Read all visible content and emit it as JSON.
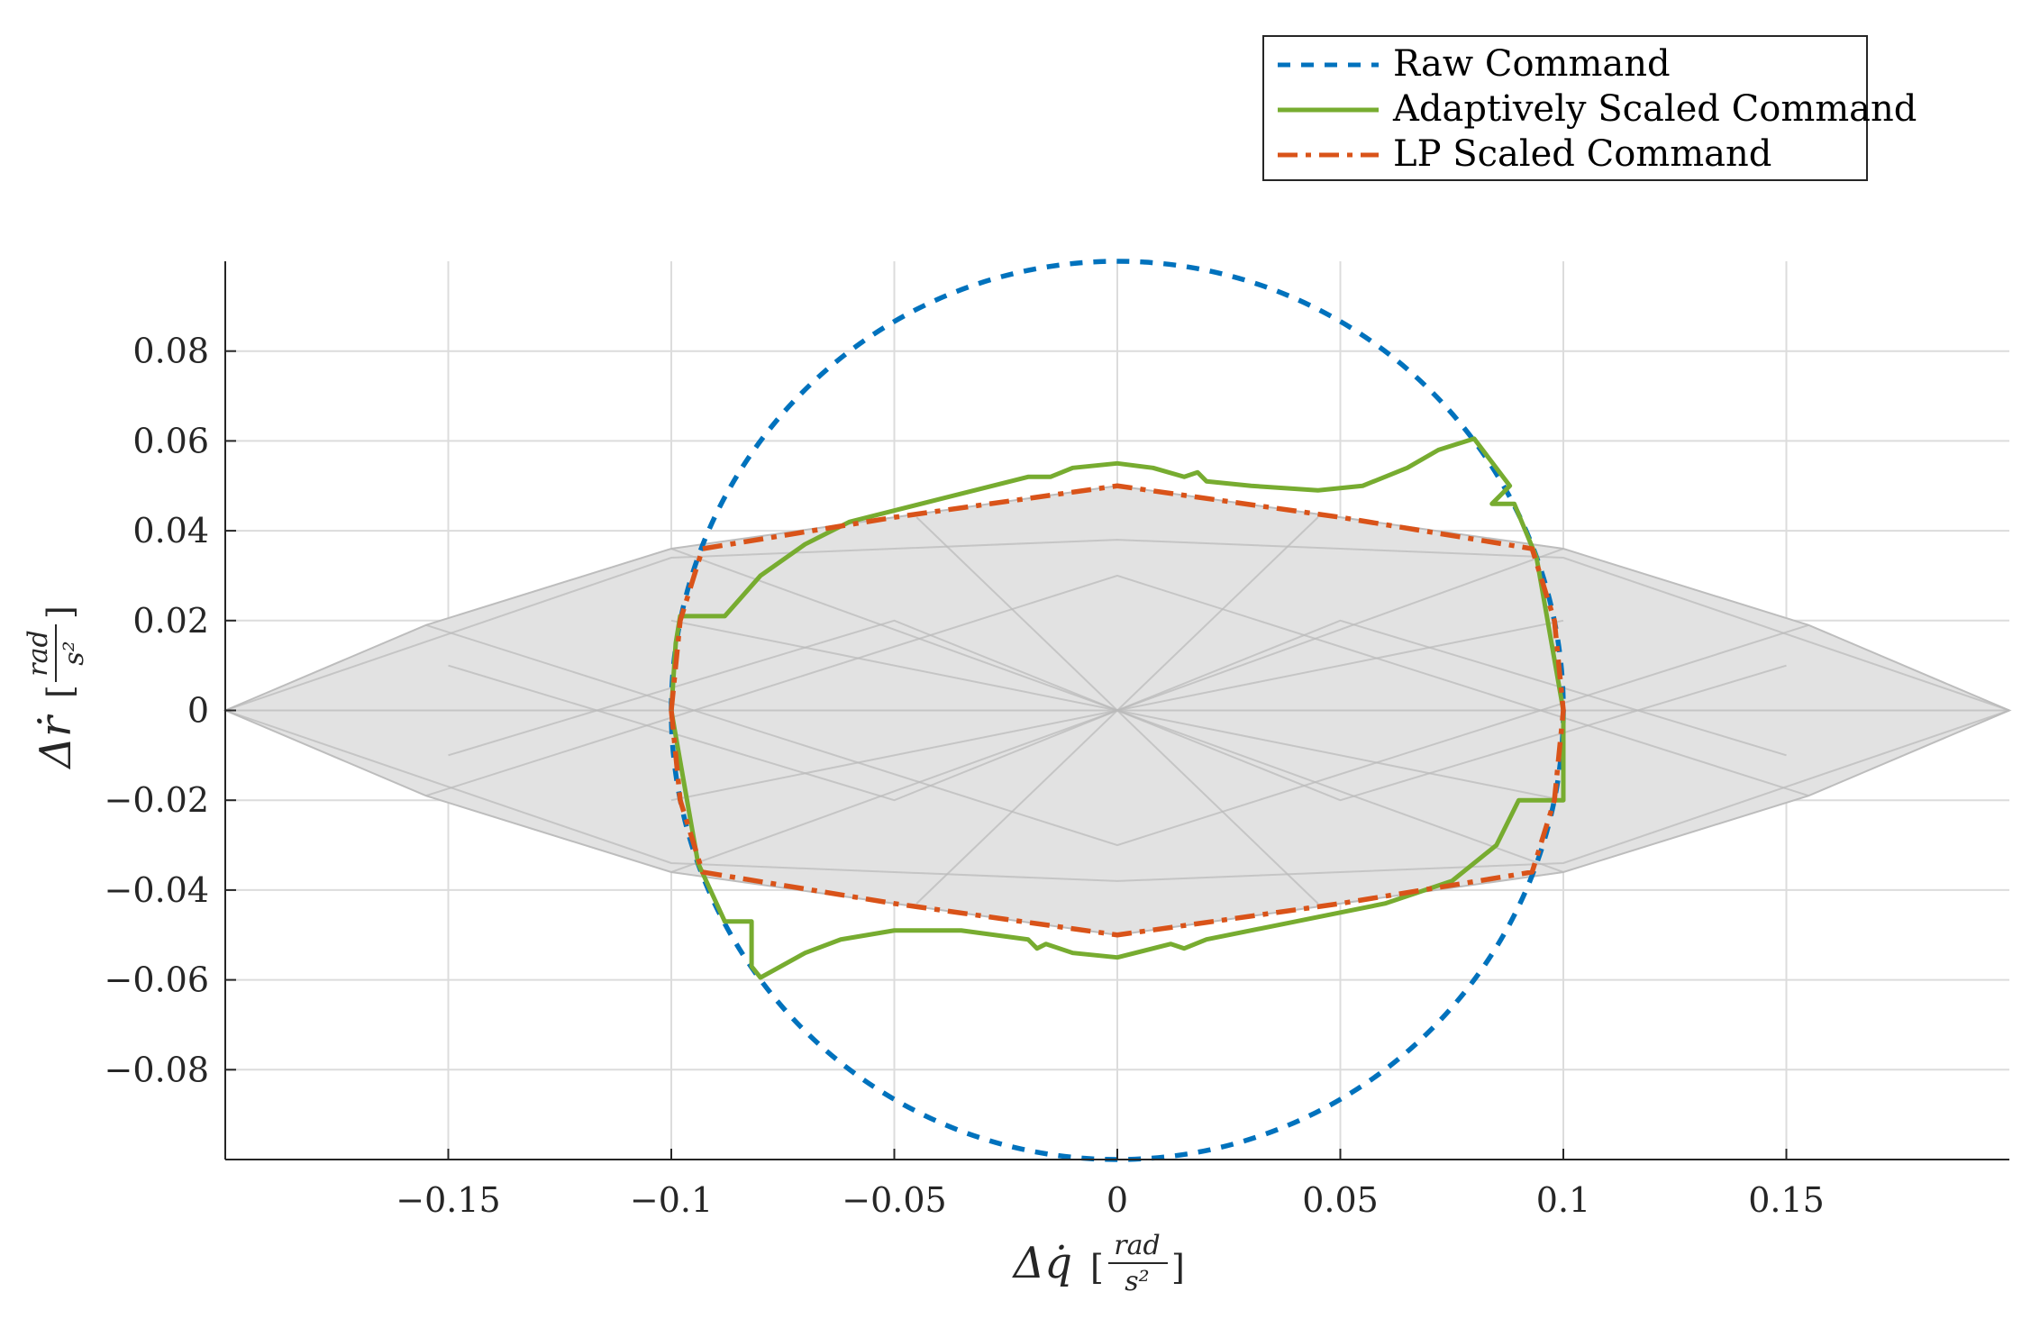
{
  "chart_data": {
    "type": "line",
    "title": "",
    "xlabel": "Δq̇",
    "ylabel": "Δṙ",
    "units": {
      "numerator": "rad",
      "denominator": "s²"
    },
    "xlim": [
      -0.2,
      0.2
    ],
    "ylim": [
      -0.1,
      0.1
    ],
    "x_ticks": [
      -0.15,
      -0.1,
      -0.05,
      0,
      0.05,
      0.1,
      0.15
    ],
    "x_tick_labels": [
      "−0.15",
      "−0.1",
      "−0.05",
      "0",
      "0.05",
      "0.1",
      "0.15"
    ],
    "y_ticks": [
      0.08,
      0.06,
      0.04,
      0.02,
      0,
      -0.02,
      -0.04,
      -0.06,
      -0.08
    ],
    "y_tick_labels": [
      "0.08",
      "0.06",
      "0.04",
      "0.02",
      "0",
      "−0.02",
      "−0.04",
      "−0.06",
      "−0.08"
    ],
    "grid": true,
    "legend_position": "top-right",
    "attainable_region": [
      [
        -0.2,
        0
      ],
      [
        -0.155,
        0.019
      ],
      [
        -0.1,
        0.036
      ],
      [
        0,
        0.05
      ],
      [
        0.1,
        0.036
      ],
      [
        0.155,
        0.019
      ],
      [
        0.2,
        0
      ],
      [
        0.155,
        -0.019
      ],
      [
        0.1,
        -0.036
      ],
      [
        0,
        -0.05
      ],
      [
        -0.1,
        -0.036
      ],
      [
        -0.155,
        -0.019
      ]
    ],
    "region_internal_lines": [
      [
        [
          -0.2,
          0
        ],
        [
          -0.1,
          0.034
        ],
        [
          0,
          0.038
        ],
        [
          0.1,
          0.034
        ],
        [
          0.2,
          0
        ]
      ],
      [
        [
          -0.2,
          0
        ],
        [
          -0.1,
          -0.034
        ],
        [
          0,
          -0.038
        ],
        [
          0.1,
          -0.034
        ],
        [
          0.2,
          0
        ]
      ],
      [
        [
          -0.155,
          0.019
        ],
        [
          0,
          -0.03
        ],
        [
          0.155,
          0.019
        ]
      ],
      [
        [
          -0.155,
          -0.019
        ],
        [
          0,
          0.03
        ],
        [
          0.155,
          -0.019
        ]
      ],
      [
        [
          -0.1,
          0.036
        ],
        [
          0.1,
          -0.036
        ]
      ],
      [
        [
          -0.1,
          -0.036
        ],
        [
          0.1,
          0.036
        ]
      ],
      [
        [
          -0.2,
          0
        ],
        [
          0.2,
          0
        ]
      ],
      [
        [
          -0.15,
          0.01
        ],
        [
          -0.05,
          -0.02
        ],
        [
          0.05,
          0.02
        ],
        [
          0.15,
          -0.01
        ]
      ],
      [
        [
          -0.15,
          -0.01
        ],
        [
          -0.05,
          0.02
        ],
        [
          0.05,
          -0.02
        ],
        [
          0.15,
          0.01
        ]
      ],
      [
        [
          -0.1,
          0.02
        ],
        [
          0,
          0.0
        ],
        [
          0.1,
          0.02
        ]
      ],
      [
        [
          -0.1,
          -0.02
        ],
        [
          0,
          0.0
        ],
        [
          0.1,
          -0.02
        ]
      ],
      [
        [
          -0.045,
          0.043
        ],
        [
          0.045,
          -0.043
        ]
      ],
      [
        [
          -0.045,
          -0.043
        ],
        [
          0.045,
          0.043
        ]
      ]
    ],
    "series": [
      {
        "name": "Raw Command",
        "color": "#0072BD",
        "style": "dashed",
        "shape": "circle",
        "center": [
          0,
          0
        ],
        "radius": 0.1
      },
      {
        "name": "Adaptively Scaled Command",
        "color": "#77AC30",
        "style": "solid",
        "points": [
          [
            -0.1,
            0
          ],
          [
            -0.099,
            0.015
          ],
          [
            -0.098,
            0.021
          ],
          [
            -0.088,
            0.021
          ],
          [
            -0.08,
            0.03
          ],
          [
            -0.07,
            0.037
          ],
          [
            -0.06,
            0.042
          ],
          [
            -0.04,
            0.047
          ],
          [
            -0.02,
            0.052
          ],
          [
            -0.015,
            0.052
          ],
          [
            -0.01,
            0.054
          ],
          [
            0,
            0.055
          ],
          [
            0.008,
            0.054
          ],
          [
            0.015,
            0.052
          ],
          [
            0.018,
            0.053
          ],
          [
            0.02,
            0.051
          ],
          [
            0.03,
            0.05
          ],
          [
            0.045,
            0.049
          ],
          [
            0.055,
            0.05
          ],
          [
            0.065,
            0.054
          ],
          [
            0.072,
            0.058
          ],
          [
            0.08,
            0.0605
          ],
          [
            0.088,
            0.05
          ],
          [
            0.084,
            0.046
          ],
          [
            0.089,
            0.046
          ],
          [
            0.094,
            0.034
          ],
          [
            0.1,
            0
          ],
          [
            0.1,
            -0.02
          ],
          [
            0.09,
            -0.02
          ],
          [
            0.085,
            -0.03
          ],
          [
            0.075,
            -0.038
          ],
          [
            0.06,
            -0.043
          ],
          [
            0.04,
            -0.047
          ],
          [
            0.02,
            -0.051
          ],
          [
            0.015,
            -0.053
          ],
          [
            0.012,
            -0.052
          ],
          [
            0,
            -0.055
          ],
          [
            -0.01,
            -0.054
          ],
          [
            -0.016,
            -0.052
          ],
          [
            -0.018,
            -0.053
          ],
          [
            -0.02,
            -0.051
          ],
          [
            -0.035,
            -0.049
          ],
          [
            -0.05,
            -0.049
          ],
          [
            -0.062,
            -0.051
          ],
          [
            -0.07,
            -0.054
          ],
          [
            -0.08,
            -0.0595
          ],
          [
            -0.082,
            -0.057
          ],
          [
            -0.082,
            -0.047
          ],
          [
            -0.088,
            -0.047
          ],
          [
            -0.094,
            -0.034
          ],
          [
            -0.1,
            0
          ]
        ]
      },
      {
        "name": "LP Scaled Command",
        "color": "#D95319",
        "style": "dashdot",
        "points": [
          [
            -0.1,
            0
          ],
          [
            -0.098,
            0.02
          ],
          [
            -0.093,
            0.036
          ],
          [
            -0.05,
            0.043
          ],
          [
            0,
            0.05
          ],
          [
            0.05,
            0.043
          ],
          [
            0.093,
            0.036
          ],
          [
            0.098,
            0.02
          ],
          [
            0.1,
            0
          ],
          [
            0.098,
            -0.02
          ],
          [
            0.093,
            -0.036
          ],
          [
            0.05,
            -0.043
          ],
          [
            0,
            -0.05
          ],
          [
            -0.05,
            -0.043
          ],
          [
            -0.093,
            -0.036
          ],
          [
            -0.098,
            -0.02
          ],
          [
            -0.1,
            0
          ]
        ]
      }
    ]
  }
}
